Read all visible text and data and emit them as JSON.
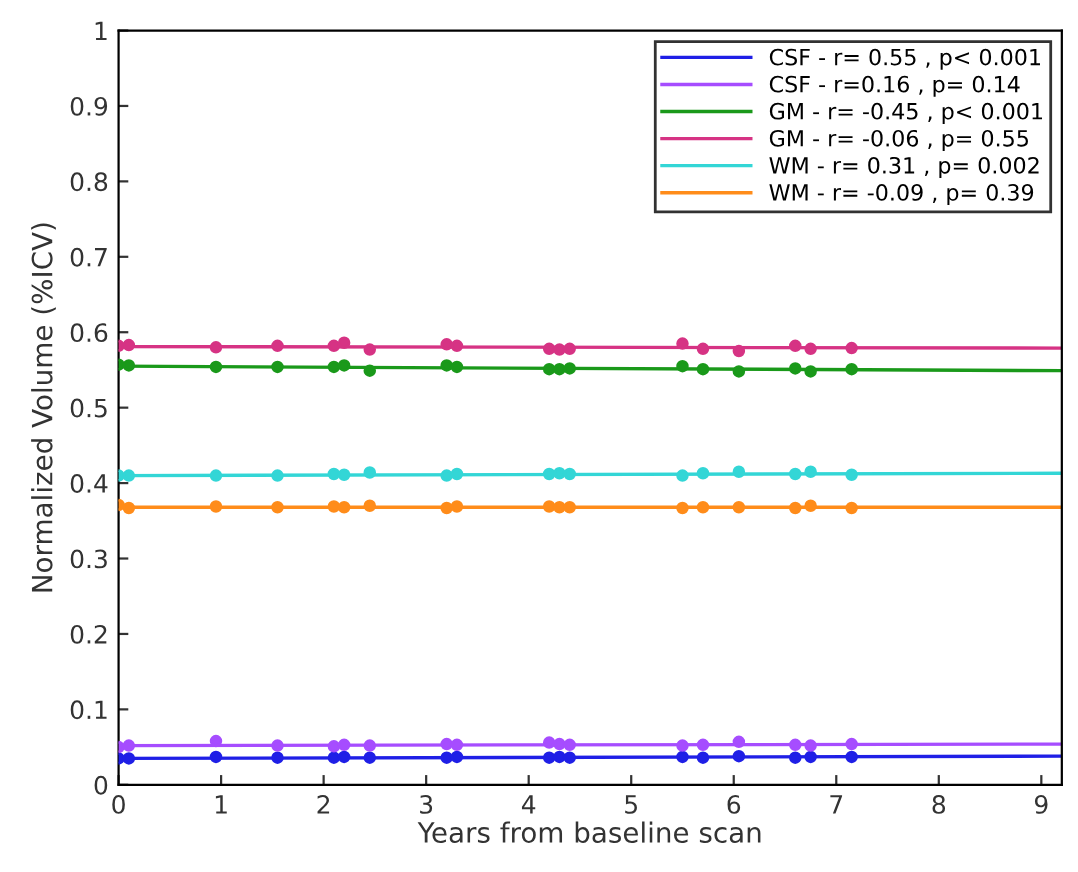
{
  "chart_data": {
    "type": "scatter",
    "marker": "circle",
    "xlabel": "Years from baseline scan",
    "ylabel": "Normalized Volume (%ICV)",
    "xlim": [
      0,
      9.2
    ],
    "ylim": [
      0,
      1
    ],
    "xticks": [
      0,
      1,
      2,
      3,
      4,
      5,
      6,
      7,
      8,
      9
    ],
    "yticks": [
      0,
      0.1,
      0.2,
      0.3,
      0.4,
      0.5,
      0.6,
      0.7,
      0.8,
      0.9,
      1
    ],
    "legend": "top right",
    "grid": false,
    "series": [
      {
        "color": "#1f1fe6",
        "x": [
          0,
          0.1,
          0.95,
          1.55,
          2.1,
          2.2,
          2.45,
          3.2,
          3.3,
          4.2,
          4.3,
          4.4,
          5.5,
          5.7,
          6.05,
          6.6,
          6.75,
          7.15
        ],
        "values": [
          0.035,
          0.035,
          0.037,
          0.036,
          0.036,
          0.037,
          0.036,
          0.036,
          0.037,
          0.036,
          0.037,
          0.036,
          0.037,
          0.036,
          0.038,
          0.036,
          0.037,
          0.037
        ]
      },
      {
        "color": "#a64dff",
        "x": [
          0,
          0.1,
          0.95,
          1.55,
          2.1,
          2.2,
          2.45,
          3.2,
          3.3,
          4.2,
          4.3,
          4.4,
          5.5,
          5.7,
          6.05,
          6.6,
          6.75,
          7.15
        ],
        "values": [
          0.05,
          0.052,
          0.058,
          0.052,
          0.051,
          0.053,
          0.052,
          0.054,
          0.053,
          0.056,
          0.054,
          0.053,
          0.052,
          0.053,
          0.057,
          0.053,
          0.052,
          0.054
        ]
      },
      {
        "color": "#1a991a",
        "x": [
          0,
          0.1,
          0.95,
          1.55,
          2.1,
          2.2,
          2.45,
          3.2,
          3.3,
          4.2,
          4.3,
          4.4,
          5.5,
          5.7,
          6.05,
          6.6,
          6.75,
          7.15
        ],
        "values": [
          0.557,
          0.556,
          0.554,
          0.554,
          0.554,
          0.556,
          0.549,
          0.556,
          0.554,
          0.551,
          0.551,
          0.552,
          0.555,
          0.551,
          0.548,
          0.552,
          0.548,
          0.551
        ]
      },
      {
        "color": "#d63384",
        "x": [
          0,
          0.1,
          0.95,
          1.55,
          2.1,
          2.2,
          2.45,
          3.2,
          3.3,
          4.2,
          4.3,
          4.4,
          5.5,
          5.7,
          6.05,
          6.6,
          6.75,
          7.15
        ],
        "values": [
          0.582,
          0.583,
          0.58,
          0.582,
          0.582,
          0.586,
          0.577,
          0.584,
          0.582,
          0.578,
          0.577,
          0.578,
          0.585,
          0.578,
          0.575,
          0.582,
          0.578,
          0.579
        ]
      },
      {
        "color": "#33d6d6",
        "x": [
          0,
          0.1,
          0.95,
          1.55,
          2.1,
          2.2,
          2.45,
          3.2,
          3.3,
          4.2,
          4.3,
          4.4,
          5.5,
          5.7,
          6.05,
          6.6,
          6.75,
          7.15
        ],
        "values": [
          0.41,
          0.41,
          0.41,
          0.41,
          0.412,
          0.411,
          0.414,
          0.41,
          0.412,
          0.412,
          0.413,
          0.412,
          0.41,
          0.413,
          0.415,
          0.412,
          0.415,
          0.411
        ]
      },
      {
        "color": "#ff8c1a",
        "x": [
          0,
          0.1,
          0.95,
          1.55,
          2.1,
          2.2,
          2.45,
          3.2,
          3.3,
          4.2,
          4.3,
          4.4,
          5.5,
          5.7,
          6.05,
          6.6,
          6.75,
          7.15
        ],
        "values": [
          0.371,
          0.367,
          0.369,
          0.368,
          0.369,
          0.368,
          0.37,
          0.367,
          0.369,
          0.369,
          0.368,
          0.368,
          0.367,
          0.368,
          0.368,
          0.367,
          0.37,
          0.367
        ]
      },
      {
        "type": "line",
        "marker": "none",
        "name": "CSF - r= 0.55 , p< 0.001",
        "color": "#1f1fe6",
        "x": [
          0,
          9.2
        ],
        "values": [
          0.035,
          0.038
        ]
      },
      {
        "type": "line",
        "marker": "none",
        "name": "CSF - r=0.16 , p= 0.14",
        "color": "#a64dff",
        "x": [
          0,
          9.2
        ],
        "values": [
          0.052,
          0.054
        ]
      },
      {
        "type": "line",
        "marker": "none",
        "name": "GM - r= -0.45 , p< 0.001",
        "color": "#1a991a",
        "x": [
          0,
          9.2
        ],
        "values": [
          0.555,
          0.549
        ]
      },
      {
        "type": "line",
        "marker": "none",
        "name": "GM - r= -0.06 , p= 0.55",
        "color": "#d63384",
        "x": [
          0,
          9.2
        ],
        "values": [
          0.581,
          0.579
        ]
      },
      {
        "type": "line",
        "marker": "none",
        "name": "WM - r= 0.31 , p= 0.002",
        "color": "#33d6d6",
        "x": [
          0,
          9.2
        ],
        "values": [
          0.41,
          0.413
        ]
      },
      {
        "type": "line",
        "marker": "none",
        "name": "WM - r= -0.09 , p= 0.39",
        "color": "#ff8c1a",
        "x": [
          0,
          9.2
        ],
        "values": [
          0.368,
          0.368
        ]
      }
    ]
  }
}
